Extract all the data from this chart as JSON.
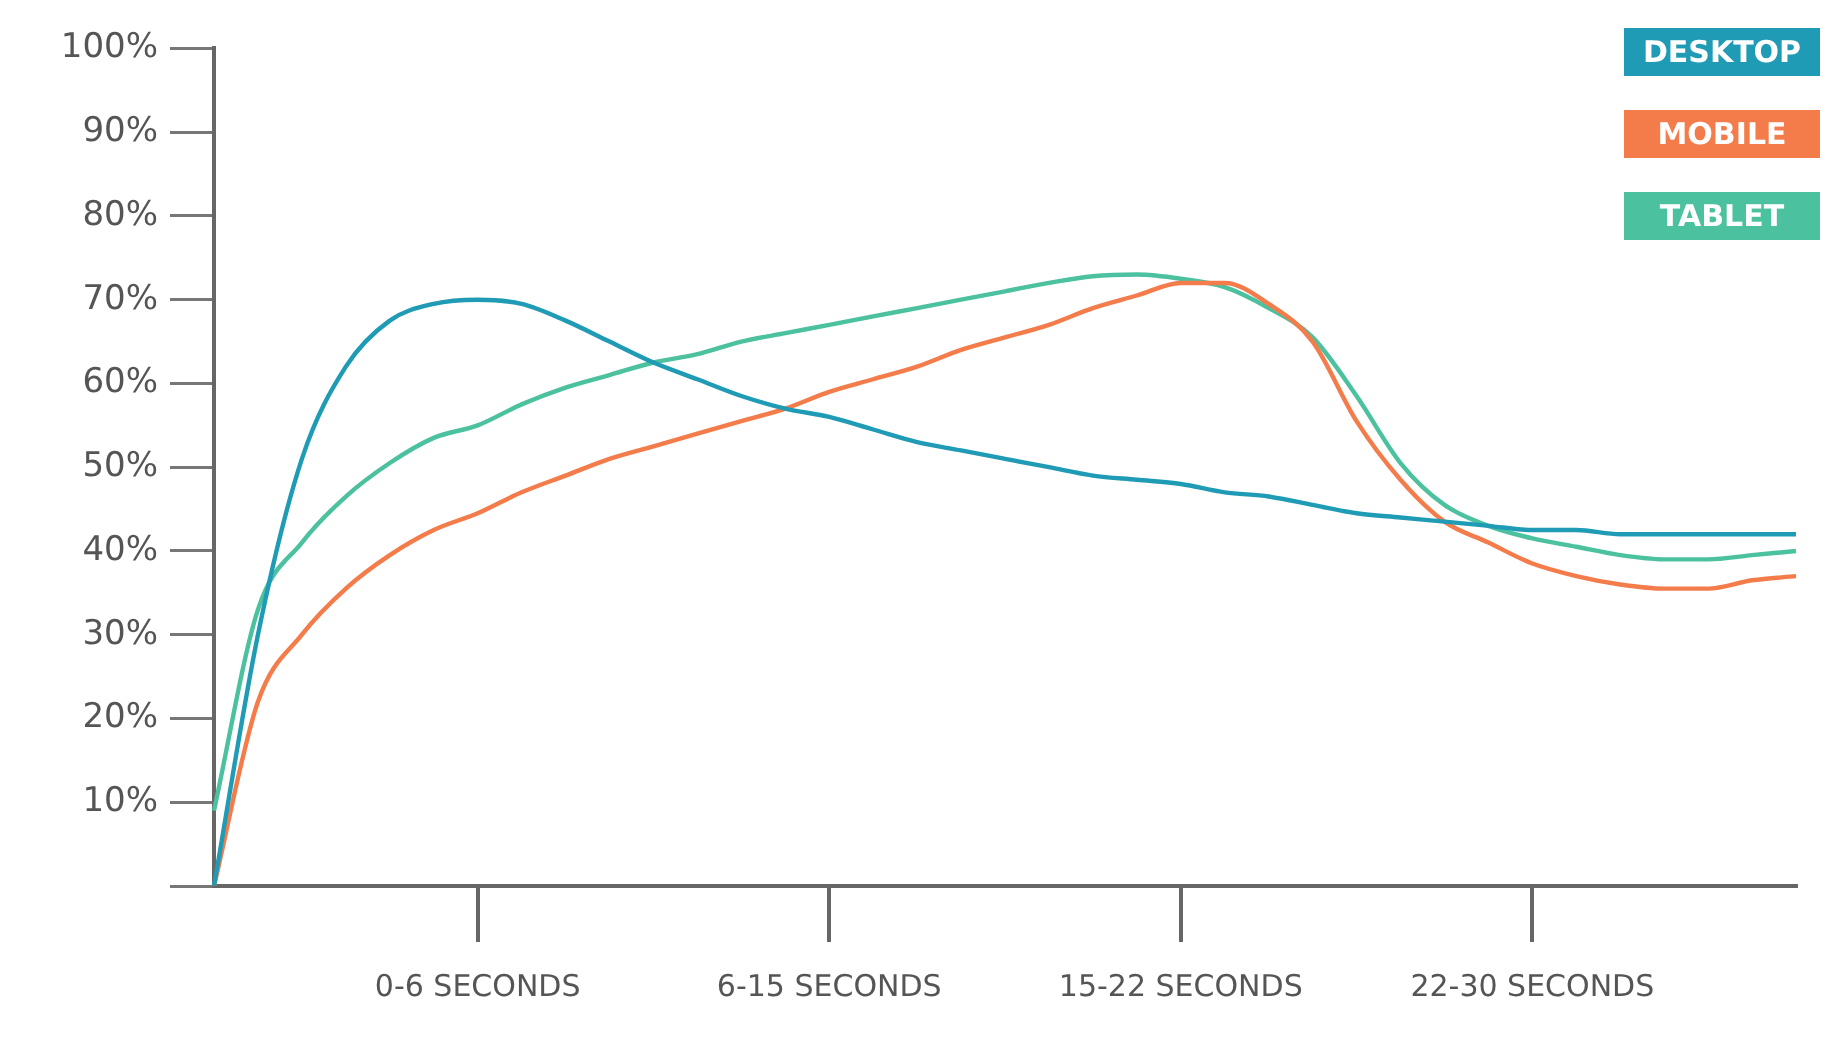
{
  "chart_data": {
    "type": "line",
    "categories": [
      null,
      null,
      null,
      null,
      null,
      null,
      "0-6 SECONDS",
      null,
      null,
      null,
      null,
      null,
      null,
      null,
      "6-15 SECONDS",
      null,
      null,
      null,
      null,
      null,
      null,
      null,
      "15-22 SECONDS",
      null,
      null,
      null,
      null,
      null,
      null,
      null,
      "22-30 SECONDS",
      null,
      null,
      null,
      null,
      null,
      null
    ],
    "ylim": [
      0,
      100
    ],
    "yticks": [
      {
        "value": 0,
        "label": null
      },
      {
        "value": 10,
        "label": "10%"
      },
      {
        "value": 20,
        "label": "20%"
      },
      {
        "value": 30,
        "label": "30%"
      },
      {
        "value": 40,
        "label": "40%"
      },
      {
        "value": 50,
        "label": "50%"
      },
      {
        "value": 60,
        "label": "60%"
      },
      {
        "value": 70,
        "label": "70%"
      },
      {
        "value": 80,
        "label": "80%"
      },
      {
        "value": 90,
        "label": "90%"
      },
      {
        "value": 100,
        "label": "100%"
      }
    ],
    "grid": false,
    "legend": "top right",
    "marker": "none",
    "line_style": "solid",
    "series": [
      {
        "name": "DESKTOP",
        "color": "#1f9bb5",
        "values": [
          0,
          30,
          51,
          62,
          67.5,
          69.5,
          70,
          69.5,
          67.5,
          65,
          62.5,
          60.5,
          58.5,
          57,
          56,
          54.5,
          53,
          52,
          51,
          50,
          49,
          48.5,
          48,
          47,
          46.5,
          45.5,
          44.5,
          44,
          43.5,
          43,
          42.5,
          42.5,
          42,
          42,
          42,
          42,
          42
        ]
      },
      {
        "name": "MOBILE",
        "color": "#f47c4b",
        "values": [
          0,
          22,
          30,
          35.5,
          39.5,
          42.5,
          44.5,
          47,
          49,
          51,
          52.5,
          54,
          55.5,
          57,
          59,
          60.5,
          62,
          64,
          65.5,
          67,
          69,
          70.5,
          72,
          72,
          69.5,
          65,
          55.5,
          48.5,
          43.5,
          41,
          38.5,
          37,
          36,
          35.5,
          35.5,
          36.5,
          37
        ]
      },
      {
        "name": "TABLET",
        "color": "#4cc19f",
        "values": [
          9,
          33,
          41,
          46.5,
          50.5,
          53.5,
          55,
          57.5,
          59.5,
          61,
          62.5,
          63.5,
          65,
          66,
          67,
          68,
          69,
          70,
          71,
          72,
          72.8,
          73,
          72.5,
          71.5,
          69,
          65.5,
          58.5,
          50.5,
          45.5,
          43,
          41.5,
          40.5,
          39.5,
          39,
          39,
          39.5,
          40
        ]
      }
    ]
  }
}
